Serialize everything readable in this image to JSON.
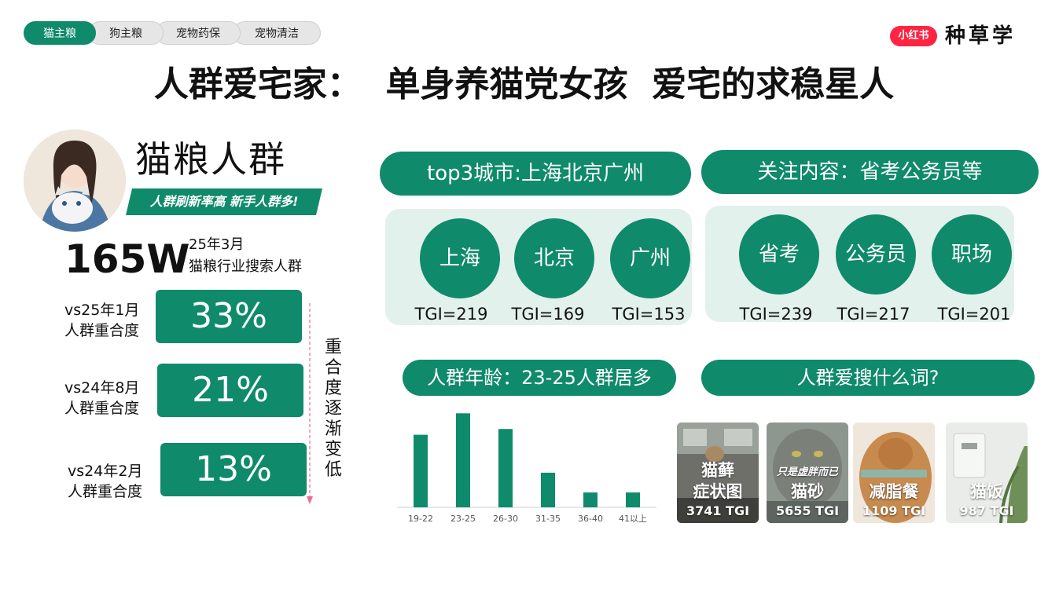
{
  "tabs": [
    {
      "label": "猫主粮",
      "active": true
    },
    {
      "label": "狗主粮",
      "active": false
    },
    {
      "label": "宠物药保",
      "active": false
    },
    {
      "label": "宠物清洁",
      "active": false
    }
  ],
  "brand": {
    "badge": "小红书",
    "name": "种草学",
    "badge_color": "#ff2442"
  },
  "title": "人群爱宅家：  单身养猫党女孩  爱宅的求稳星人",
  "persona": {
    "title": "猫粮人群",
    "banner": "人群刷新率高 新手人群多!",
    "stat_value": "165W",
    "stat_caption_1": "25年3月",
    "stat_caption_2": "猫粮行业搜索人群"
  },
  "overlap": [
    {
      "line1": "vs25年1月",
      "line2": "人群重合度",
      "value": "33%"
    },
    {
      "line1": "vs24年8月",
      "line2": "人群重合度",
      "value": "21%"
    },
    {
      "line1": "vs24年2月",
      "line2": "人群重合度",
      "value": "13%"
    }
  ],
  "trend_note": "重合度逐渐变低",
  "cities": {
    "header": "top3城市:上海北京广州",
    "items": [
      {
        "name": "上海",
        "tgi": "TGI=219"
      },
      {
        "name": "北京",
        "tgi": "TGI=169"
      },
      {
        "name": "广州",
        "tgi": "TGI=153"
      }
    ]
  },
  "interests": {
    "header": "关注内容：省考公务员等",
    "items": [
      {
        "name": "省考",
        "tgi": "TGI=239"
      },
      {
        "name": "公务员",
        "tgi": "TGI=217"
      },
      {
        "name": "职场",
        "tgi": "TGI=201"
      }
    ]
  },
  "age_header": "人群年龄：23-25人群居多",
  "search_header": "人群爱搜什么词?",
  "keywords": [
    {
      "line1": "猫藓",
      "line2": "症状图",
      "tgi": "3741 TGI",
      "stamp": ""
    },
    {
      "line1": "",
      "line2": "猫砂",
      "tgi": "5655 TGI",
      "stamp": "只是虚胖而已"
    },
    {
      "line1": "",
      "line2": "减脂餐",
      "tgi": "1109 TGI",
      "stamp": ""
    },
    {
      "line1": "",
      "line2": "猫饭",
      "tgi": "987 TGI",
      "stamp": ""
    }
  ],
  "colors": {
    "accent": "#0f8a6b",
    "panel": "#e3f1ec",
    "arrow": "#f06b8a"
  },
  "chart_data": {
    "type": "bar",
    "categories": [
      "19-22",
      "23-25",
      "26-30",
      "31-35",
      "36-40",
      "41以上"
    ],
    "values": [
      88,
      114,
      95,
      42,
      18,
      18
    ],
    "ylim": [
      0,
      120
    ],
    "grid": false,
    "title": "",
    "xlabel": "",
    "ylabel": ""
  }
}
